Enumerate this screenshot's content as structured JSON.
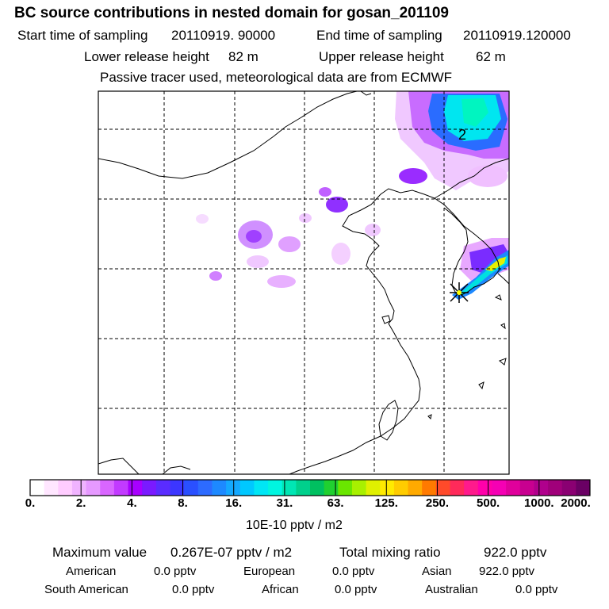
{
  "header": {
    "title": "BC  source contributions in nested domain for gosan_201109",
    "start_label": "Start time of sampling",
    "start_value": "20110919. 90000",
    "end_label": "End time of sampling",
    "end_value": "20110919.120000",
    "lower_label": "Lower release height",
    "lower_value": "82 m",
    "upper_label": "Upper release height",
    "upper_value": "62 m",
    "note": "Passive tracer used, meteorological data are from ECMWF"
  },
  "map": {
    "contour_label": "2",
    "colors": {
      "land_line": "#000000",
      "grid": "#000000",
      "marker": "#000000",
      "marker_fill": "#ffff00"
    }
  },
  "colorbar": {
    "ticks": [
      "0.",
      "2.",
      "4.",
      "8.",
      "16.",
      "31.",
      "63.",
      "125.",
      "250.",
      "500.",
      "1000.",
      "2000."
    ],
    "unit": "10E-10 pptv / m2",
    "colors": [
      "#ffffff",
      "#ffe6ff",
      "#ffccff",
      "#f0b3ff",
      "#e699ff",
      "#d966ff",
      "#c23aff",
      "#a800ff",
      "#7a1aff",
      "#5a2cff",
      "#3c36ff",
      "#2a50ff",
      "#2d6bff",
      "#1d89ff",
      "#14a8ff",
      "#00c8ff",
      "#00e6f5",
      "#00f5e0",
      "#00e6b4",
      "#00d08c",
      "#00c060",
      "#20d030",
      "#6ae600",
      "#a8f000",
      "#e0f000",
      "#ffea00",
      "#ffcc00",
      "#ffaa00",
      "#ff7a00",
      "#ff4a2a",
      "#ff2a5a",
      "#ff1a8c",
      "#ff00aa",
      "#f500b4",
      "#e0009c",
      "#c80090",
      "#b0008c",
      "#a0007a",
      "#8a0072",
      "#6a0064"
    ]
  },
  "footer": {
    "max_label": "Maximum value",
    "max_value": "0.267E-07 pptv / m2",
    "total_label": "Total mixing ratio",
    "total_value": "922.0 pptv",
    "regions": [
      {
        "name": "American",
        "value": "0.0 pptv"
      },
      {
        "name": "European",
        "value": "0.0 pptv"
      },
      {
        "name": "Asian",
        "value": "922.0 pptv"
      },
      {
        "name": "South American",
        "value": "0.0 pptv"
      },
      {
        "name": "African",
        "value": "0.0 pptv"
      },
      {
        "name": "Australian",
        "value": "0.0 pptv"
      }
    ]
  }
}
